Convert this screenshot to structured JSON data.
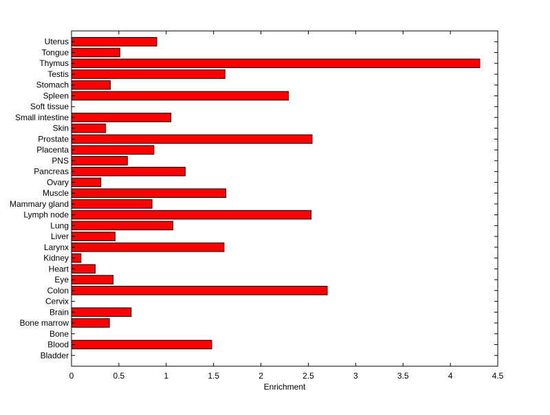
{
  "chart_data": {
    "type": "bar",
    "orientation": "horizontal",
    "xlabel": "Enrichment",
    "ylabel": "",
    "title": "",
    "xlim": [
      0,
      4.5
    ],
    "xticks": [
      0,
      0.5,
      1,
      1.5,
      2,
      2.5,
      3,
      3.5,
      4,
      4.5
    ],
    "xtick_labels": [
      "0",
      "0.5",
      "1",
      "1.5",
      "2",
      "2.5",
      "3",
      "3.5",
      "4",
      "4.5"
    ],
    "categories": [
      "Uterus",
      "Tongue",
      "Thymus",
      "Testis",
      "Stomach",
      "Spleen",
      "Soft tissue",
      "Small intestine",
      "Skin",
      "Prostate",
      "Placenta",
      "PNS",
      "Pancreas",
      "Ovary",
      "Muscle",
      "Mammary gland",
      "Lymph node",
      "Lung",
      "Liver",
      "Larynx",
      "Kidney",
      "Heart",
      "Eye",
      "Colon",
      "Cervix",
      "Brain",
      "Bone marrow",
      "Bone",
      "Blood",
      "Bladder"
    ],
    "values": [
      0.9,
      0.51,
      4.31,
      1.62,
      0.41,
      2.29,
      0,
      1.05,
      0.36,
      2.54,
      0.87,
      0.59,
      1.2,
      0.31,
      1.63,
      0.85,
      2.53,
      1.07,
      0.46,
      1.61,
      0.1,
      0.25,
      0.44,
      2.7,
      0,
      0.63,
      0.4,
      0,
      1.48,
      0
    ],
    "bar_color": "#ff0000",
    "bar_edge_color": "#000000",
    "grid": false,
    "legend": "none"
  }
}
